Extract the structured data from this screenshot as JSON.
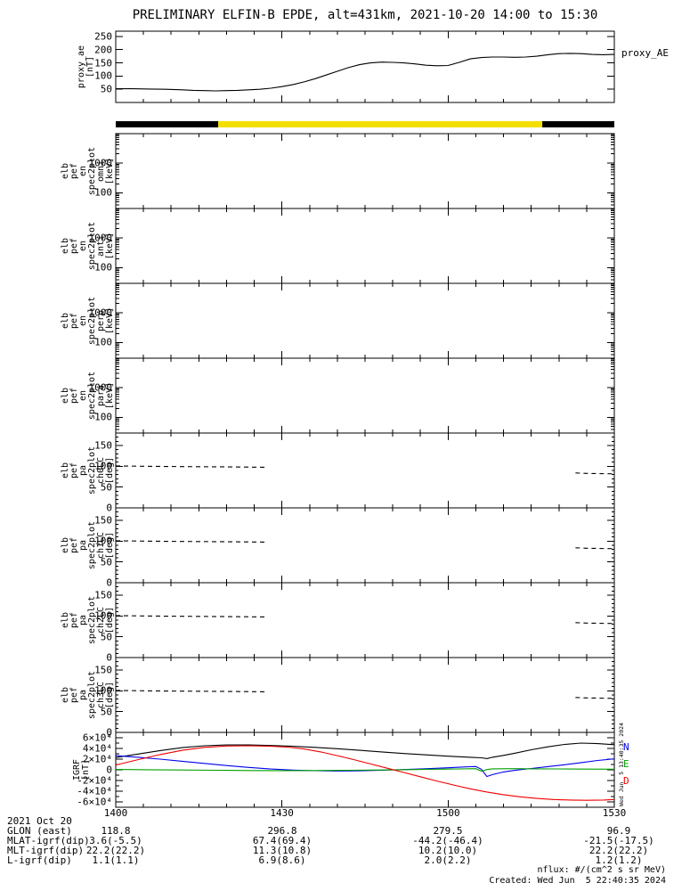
{
  "title": "PRELIMINARY ELFIN-B EPDE, alt=431km, 2021-10-20 14:00 to 15:30",
  "side_timestamp": "Wed Jun  5 13:40:35 2024",
  "footer": {
    "date_line": "2021 Oct 20",
    "rows": [
      {
        "label": "GLON (east)",
        "values": [
          "118.8",
          "296.8",
          "279.5",
          "96.9"
        ]
      },
      {
        "label": "MLAT-igrf(dip)",
        "values": [
          "3.6(-5.5)",
          "67.4(69.4)",
          "-44.2(-46.4)",
          "-21.5(-17.5)"
        ]
      },
      {
        "label": "MLT-igrf(dip)",
        "values": [
          "22.2(22.2)",
          "11.3(10.8)",
          "10.2(10.0)",
          "22.2(22.2)"
        ]
      },
      {
        "label": "L-igrf(dip)",
        "values": [
          "1.1(1.1)",
          "6.9(8.6)",
          "2.0(2.2)",
          "1.2(1.2)"
        ]
      }
    ],
    "nflux_note": "nflux: #/(cm^2 s sr MeV)",
    "created_note": "Created: Wed Jun  5 22:40:35 2024"
  },
  "chart_data": {
    "type": "line",
    "title": "PRELIMINARY ELFIN-B EPDE, alt=431km, 2021-10-20 14:00 to 15:30",
    "xaxis": {
      "range_minutes": [
        0,
        90
      ],
      "major_tick_minutes": [
        0,
        30,
        60,
        90
      ],
      "tick_labels": [
        "1400",
        "1430",
        "1500",
        "1530"
      ],
      "minor_step_minutes": 5
    },
    "time_bar": {
      "segments": [
        {
          "color": "#000000",
          "from_min": 0,
          "to_min": 18.5
        },
        {
          "color": "#f2df00",
          "from_min": 18.5,
          "to_min": 77
        },
        {
          "color": "#000000",
          "from_min": 77,
          "to_min": 90
        }
      ]
    },
    "proxy": {
      "ylabel_lines": [
        "proxy_ae",
        "[nT]"
      ],
      "right_label": "proxy_AE",
      "ylim": [
        0,
        270
      ],
      "yticks": [
        50,
        100,
        150,
        200,
        250
      ],
      "series": {
        "name": "proxy_AE",
        "color": "#000000",
        "x": [
          0,
          3,
          6,
          9,
          12,
          14,
          16,
          18,
          20,
          22,
          24,
          26,
          28,
          30,
          32,
          34,
          36,
          38,
          40,
          42,
          44,
          46,
          48,
          50,
          52,
          54,
          56,
          58,
          60,
          62,
          64,
          66,
          68,
          70,
          72,
          74,
          76,
          78,
          80,
          82,
          84,
          86,
          88,
          90
        ],
        "y": [
          52,
          52,
          51,
          50,
          48,
          46,
          45,
          44,
          45,
          46,
          48,
          50,
          54,
          60,
          68,
          78,
          90,
          104,
          118,
          132,
          143,
          150,
          153,
          152,
          150,
          146,
          141,
          139,
          140,
          152,
          165,
          170,
          172,
          172,
          171,
          172,
          175,
          181,
          185,
          186,
          185,
          182,
          181,
          182
        ]
      }
    },
    "spec_panels": {
      "yscale": "log",
      "ylim": [
        30,
        9500
      ],
      "ytick_values": [
        1000,
        100
      ],
      "ytick_labels": [
        "1000",
        "100"
      ],
      "panels": [
        {
          "ylabel_lines": [
            "elb",
            "pef",
            "en",
            "spec2plot",
            "omni",
            "[keV]"
          ]
        },
        {
          "ylabel_lines": [
            "elb",
            "pef",
            "en",
            "spec2plot",
            "anti",
            "[keV]"
          ]
        },
        {
          "ylabel_lines": [
            "elb",
            "pef",
            "en",
            "spec2plot",
            "perp",
            "[keV]"
          ]
        },
        {
          "ylabel_lines": [
            "elb",
            "pef",
            "en",
            "spec2plot",
            "para",
            "[keV]"
          ]
        }
      ]
    },
    "pa_panels": {
      "ylim": [
        0,
        180
      ],
      "ytick_values": [
        0,
        50,
        100,
        150
      ],
      "minor_step": 10,
      "panels": [
        {
          "ylabel_lines": [
            "elb",
            "pef",
            "pa",
            "spec2plot",
            "ch0LC",
            "[deg]"
          ]
        },
        {
          "ylabel_lines": [
            "elb",
            "pef",
            "pa",
            "spec2plot",
            "ch1LC",
            "[deg]"
          ]
        },
        {
          "ylabel_lines": [
            "elb",
            "pef",
            "pa",
            "spec2plot",
            "ch2LC",
            "[deg]"
          ]
        },
        {
          "ylabel_lines": [
            "elb",
            "pef",
            "pa",
            "spec2plot",
            "ch3LC",
            "[deg]"
          ]
        }
      ],
      "loss_cone": {
        "style": "dashed",
        "color": "#000000",
        "left": {
          "x": [
            0,
            5,
            10,
            15,
            20,
            25,
            27
          ],
          "y": [
            101,
            100,
            99.5,
            99,
            98.5,
            98,
            97.8
          ]
        },
        "right": {
          "x": [
            83,
            85,
            87,
            89,
            90
          ],
          "y": [
            84,
            83,
            82.5,
            82,
            81.8
          ]
        }
      }
    },
    "igrf": {
      "ylabel_lines": [
        "IGRF",
        "[nT]"
      ],
      "ylim": [
        -70000,
        70000
      ],
      "ytick_values": [
        60000,
        40000,
        20000,
        0,
        -20000,
        -40000,
        -60000
      ],
      "ytick_labels": [
        "6×10⁴",
        "4×10⁴",
        "2×10⁴",
        "0",
        "-2×10⁴",
        "-4×10⁴",
        "-6×10⁴"
      ],
      "minor_tick_values": [
        -50000,
        -30000,
        -10000,
        10000,
        30000,
        50000
      ],
      "legend": [
        {
          "label": "N",
          "color": "#0000ee"
        },
        {
          "label": "E",
          "color": "#00a000"
        },
        {
          "label": "D",
          "color": "#ee0000"
        }
      ],
      "series": [
        {
          "name": "B",
          "color": "#000000",
          "x": [
            0,
            4,
            8,
            12,
            16,
            20,
            24,
            28,
            32,
            36,
            40,
            44,
            48,
            52,
            56,
            60,
            62,
            64,
            66,
            67,
            68,
            70,
            72,
            75,
            78,
            81,
            84,
            87,
            90
          ],
          "y": [
            23000,
            29500,
            36000,
            41500,
            45000,
            46500,
            46500,
            45500,
            44000,
            42000,
            39500,
            36500,
            33500,
            30500,
            28000,
            25500,
            24500,
            23500,
            22500,
            21000,
            23500,
            27000,
            31000,
            37500,
            43000,
            47500,
            50000,
            49000,
            47000
          ]
        },
        {
          "name": "N",
          "color": "#0000ee",
          "x": [
            0,
            4,
            8,
            12,
            16,
            20,
            24,
            28,
            32,
            36,
            40,
            44,
            48,
            52,
            56,
            60,
            62,
            64,
            65,
            66,
            67,
            68,
            70,
            72,
            75,
            78,
            81,
            84,
            87,
            90
          ],
          "y": [
            26500,
            23500,
            20000,
            16000,
            12000,
            8000,
            4500,
            1500,
            -500,
            -1700,
            -2200,
            -1800,
            -800,
            500,
            2000,
            3800,
            4800,
            5800,
            6200,
            1000,
            -12500,
            -9000,
            -4000,
            -1000,
            2500,
            6000,
            9500,
            13500,
            17500,
            20500
          ]
        },
        {
          "name": "E",
          "color": "#00a000",
          "x": [
            0,
            6,
            12,
            18,
            24,
            30,
            36,
            42,
            48,
            54,
            58,
            62,
            65,
            66,
            67,
            68,
            72,
            76,
            80,
            85,
            90
          ],
          "y": [
            600,
            100,
            -400,
            -900,
            -1300,
            -1500,
            -1300,
            -900,
            -300,
            500,
            1100,
            1700,
            2100,
            -2500,
            500,
            1900,
            2100,
            1900,
            1700,
            1400,
            1100
          ]
        },
        {
          "name": "D",
          "color": "#ee0000",
          "x": [
            0,
            4,
            8,
            12,
            16,
            20,
            24,
            28,
            31,
            34,
            37,
            40,
            43,
            46,
            49,
            52,
            55,
            58,
            61,
            64,
            67,
            70,
            73,
            76,
            79,
            82,
            85,
            88,
            90
          ],
          "y": [
            9000,
            19000,
            28500,
            36500,
            42000,
            44500,
            45000,
            44000,
            42500,
            39000,
            33500,
            26500,
            19000,
            11000,
            3000,
            -5000,
            -13000,
            -21000,
            -28500,
            -35500,
            -41500,
            -46500,
            -50500,
            -53500,
            -55500,
            -56500,
            -57000,
            -56500,
            -55500
          ]
        }
      ]
    }
  }
}
